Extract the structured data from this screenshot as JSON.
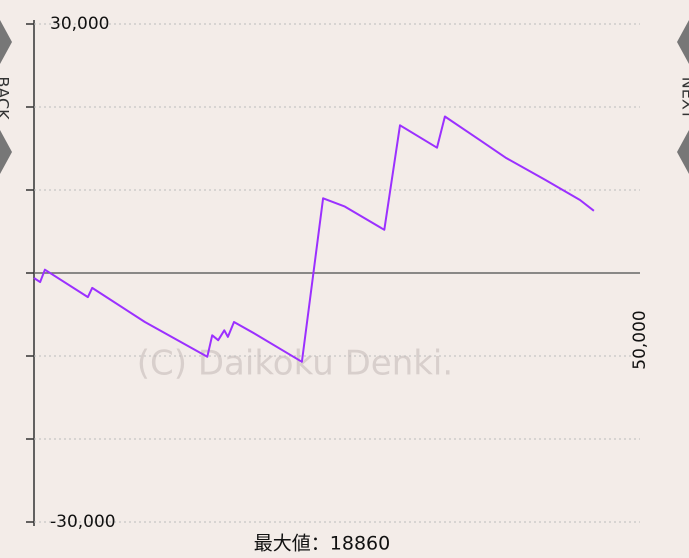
{
  "chart_data": {
    "type": "line",
    "x": [
      0,
      500,
      900,
      4450,
      4800,
      9150,
      14300,
      14700,
      15200,
      15700,
      16000,
      16500,
      18200,
      22100,
      23850,
      25650,
      28900,
      30200,
      33250,
      33900,
      36800,
      38900,
      42200,
      45050,
      46200
    ],
    "values": [
      -600,
      -1100,
      400,
      -2900,
      -1800,
      -5900,
      -10100,
      -7500,
      -8100,
      -6900,
      -7700,
      -5900,
      -7300,
      -10700,
      9000,
      8000,
      5200,
      17800,
      15100,
      18860,
      16000,
      13900,
      11200,
      8800,
      7500
    ],
    "color": "#9b30ff",
    "xlim": [
      0,
      50000
    ],
    "xticks": [
      {
        "value": 50000,
        "label": "50,000"
      }
    ],
    "ylim": [
      -30000,
      30000
    ],
    "yticks": [
      {
        "value": 30000,
        "label": "30,000"
      },
      {
        "value": 20000,
        "label": null
      },
      {
        "value": 10000,
        "label": null
      },
      {
        "value": 0,
        "label": null
      },
      {
        "value": -10000,
        "label": null
      },
      {
        "value": -20000,
        "label": null
      },
      {
        "value": -30000,
        "label": "-30,000"
      }
    ],
    "grid": true,
    "annotation": "最大値：18860",
    "watermark": "(C) Daikoku Denki."
  },
  "nav": {
    "back": "BACK",
    "next": "NEXT"
  }
}
